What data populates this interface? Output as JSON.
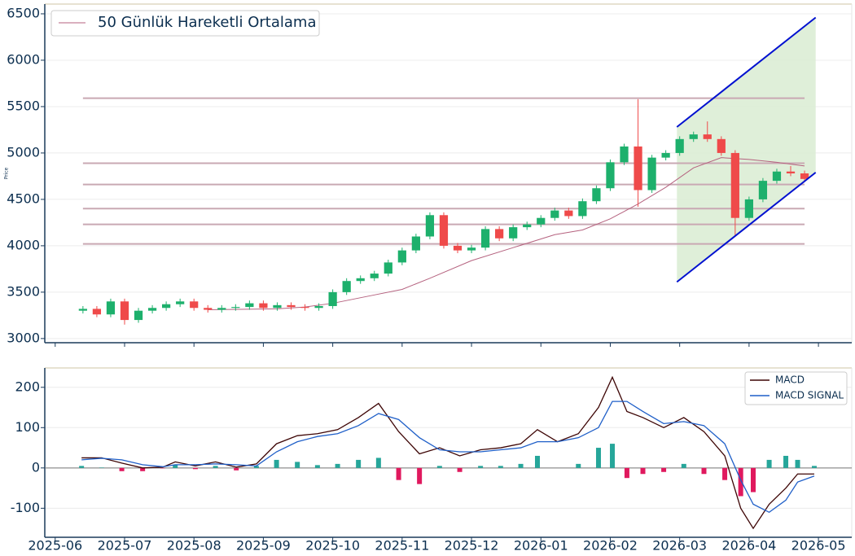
{
  "chart_data": [
    {
      "type": "candlestick",
      "ylabel": "Price",
      "x": [
        0.4,
        0.6,
        0.8,
        1.0,
        1.2,
        1.4,
        1.6,
        1.8,
        2.0,
        2.2,
        2.4,
        2.6,
        2.8,
        3.0,
        3.2,
        3.4,
        3.6,
        3.8,
        4.0,
        4.2,
        4.4,
        4.6,
        4.8,
        5.0,
        5.2,
        5.4,
        5.6,
        5.8,
        6.0,
        6.2,
        6.4,
        6.6,
        6.8,
        7.0,
        7.2,
        7.4,
        7.6,
        7.8,
        8.0,
        8.2,
        8.4,
        8.6,
        8.8,
        9.0,
        9.2,
        9.4,
        9.6,
        9.8,
        10.0,
        10.2,
        10.4,
        10.6,
        10.8
      ],
      "open": [
        3300,
        3320,
        3260,
        3400,
        3200,
        3300,
        3330,
        3370,
        3400,
        3330,
        3310,
        3330,
        3340,
        3380,
        3330,
        3360,
        3340,
        3330,
        3350,
        3500,
        3620,
        3650,
        3700,
        3820,
        3950,
        4100,
        4330,
        4000,
        3950,
        3980,
        4180,
        4080,
        4200,
        4230,
        4300,
        4380,
        4320,
        4480,
        4620,
        4900,
        5070,
        4600,
        4950,
        5000,
        5150,
        5200,
        5150,
        5000,
        4300,
        4500,
        4700,
        4800,
        4780
      ],
      "high": [
        3350,
        3350,
        3430,
        3430,
        3330,
        3360,
        3400,
        3430,
        3430,
        3360,
        3360,
        3370,
        3410,
        3410,
        3390,
        3390,
        3370,
        3380,
        3530,
        3650,
        3680,
        3730,
        3850,
        3980,
        4130,
        4360,
        4360,
        4030,
        4010,
        4210,
        4210,
        4230,
        4260,
        4330,
        4410,
        4410,
        4510,
        4650,
        4930,
        5100,
        5580,
        4980,
        5030,
        5180,
        5230,
        5340,
        5180,
        5030,
        4530,
        4730,
        4830,
        4860,
        4810
      ],
      "low": [
        3270,
        3230,
        3230,
        3150,
        3170,
        3270,
        3300,
        3340,
        3300,
        3280,
        3280,
        3300,
        3310,
        3300,
        3300,
        3310,
        3300,
        3300,
        3320,
        3470,
        3590,
        3620,
        3670,
        3790,
        3920,
        4070,
        3970,
        3920,
        3920,
        3950,
        4050,
        4050,
        4170,
        4200,
        4270,
        4290,
        4290,
        4450,
        4590,
        4870,
        4420,
        4570,
        4920,
        4970,
        5120,
        5120,
        4970,
        4100,
        4270,
        4470,
        4670,
        4750,
        4690
      ],
      "close": [
        3320,
        3260,
        3400,
        3200,
        3300,
        3330,
        3370,
        3400,
        3330,
        3310,
        3330,
        3340,
        3380,
        3330,
        3360,
        3340,
        3330,
        3350,
        3500,
        3620,
        3650,
        3700,
        3820,
        3950,
        4100,
        4330,
        4000,
        3950,
        3980,
        4180,
        4080,
        4200,
        4230,
        4300,
        4380,
        4320,
        4480,
        4620,
        4900,
        5070,
        4600,
        4950,
        5000,
        5150,
        5200,
        5150,
        5000,
        4300,
        4500,
        4700,
        4800,
        4780,
        4720
      ],
      "up_color": "#1db06c",
      "down_color": "#ef4a4a",
      "moving_average": {
        "name": "50 Günlük Hareketli Ortalama",
        "color": "#b5627f",
        "x": [
          2.2,
          3.2,
          3.6,
          4.0,
          4.6,
          5.0,
          5.4,
          6.0,
          6.6,
          7.2,
          7.6,
          8.0,
          8.4,
          8.8,
          9.2,
          9.6,
          10.0,
          10.4,
          10.8
        ],
        "values": [
          3310,
          3320,
          3340,
          3380,
          3470,
          3530,
          3650,
          3840,
          3980,
          4120,
          4170,
          4290,
          4450,
          4630,
          4840,
          4950,
          4930,
          4900,
          4860
        ]
      },
      "levels": [
        5590,
        4890,
        4660,
        4400,
        4230,
        4020
      ],
      "level_color": "#c9a9b3",
      "channel": {
        "x": [
          8.96,
          10.96
        ],
        "upper": [
          5280,
          6460
        ],
        "lower": [
          3610,
          4790
        ],
        "color": "#0010d0",
        "fill": "#dcedd5"
      },
      "ylim": [
        2955,
        6605
      ],
      "yticks": [
        3000,
        3500,
        4000,
        4500,
        5000,
        5500,
        6000,
        6500
      ],
      "xlim": [
        -0.15,
        11.48
      ]
    },
    {
      "type": "macd",
      "x": [
        0.38,
        0.67,
        0.96,
        1.26,
        1.55,
        1.73,
        2.02,
        2.31,
        2.61,
        2.9,
        3.19,
        3.49,
        3.78,
        4.07,
        4.37,
        4.66,
        4.95,
        5.25,
        5.54,
        5.83,
        6.13,
        6.42,
        6.71,
        6.95,
        7.24,
        7.54,
        7.83,
        8.03,
        8.24,
        8.47,
        8.77,
        9.06,
        9.35,
        9.65,
        9.88,
        10.06,
        10.29,
        10.53,
        10.7,
        10.94
      ],
      "series": [
        {
          "name": "MACD",
          "color": "#3d0505",
          "values": [
            25,
            25,
            12,
            0,
            2,
            15,
            5,
            15,
            2,
            10,
            60,
            80,
            85,
            95,
            125,
            160,
            90,
            35,
            50,
            30,
            45,
            50,
            60,
            95,
            65,
            85,
            150,
            225,
            140,
            125,
            100,
            125,
            90,
            30,
            -100,
            -150,
            -90,
            -50,
            -15,
            -15
          ]
        },
        {
          "name": "MACD SIGNAL",
          "color": "#1f5fc8",
          "values": [
            20,
            24,
            20,
            8,
            3,
            8,
            8,
            10,
            8,
            5,
            40,
            65,
            78,
            85,
            105,
            135,
            120,
            75,
            45,
            40,
            40,
            45,
            50,
            65,
            65,
            75,
            100,
            165,
            165,
            140,
            110,
            115,
            105,
            60,
            -30,
            -90,
            -110,
            -80,
            -35,
            -20
          ]
        }
      ],
      "histogram": [
        5,
        1,
        -8,
        -8,
        -1,
        7,
        -3,
        5,
        -6,
        5,
        20,
        15,
        7,
        10,
        20,
        25,
        -30,
        -40,
        5,
        -10,
        5,
        5,
        10,
        30,
        0,
        10,
        50,
        60,
        -25,
        -15,
        -10,
        10,
        -15,
        -30,
        -70,
        -60,
        20,
        30,
        20,
        5
      ],
      "hist_up": "#26a69a",
      "hist_down": "#e0195e",
      "ylim": [
        -172,
        248
      ],
      "yticks": [
        -100,
        0,
        100,
        200
      ],
      "xlim": [
        -0.15,
        11.48
      ],
      "xticks": [
        {
          "value": 0,
          "label": "2025-06"
        },
        {
          "value": 1,
          "label": "2025-07"
        },
        {
          "value": 2,
          "label": "2025-08"
        },
        {
          "value": 3,
          "label": "2025-09"
        },
        {
          "value": 4,
          "label": "2025-10"
        },
        {
          "value": 5,
          "label": "2025-11"
        },
        {
          "value": 6,
          "label": "2025-12"
        },
        {
          "value": 7,
          "label": "2026-01"
        },
        {
          "value": 8,
          "label": "2026-02"
        },
        {
          "value": 9,
          "label": "2026-03"
        },
        {
          "value": 10,
          "label": "2026-04"
        },
        {
          "value": 11,
          "label": "2026-05"
        }
      ]
    }
  ]
}
